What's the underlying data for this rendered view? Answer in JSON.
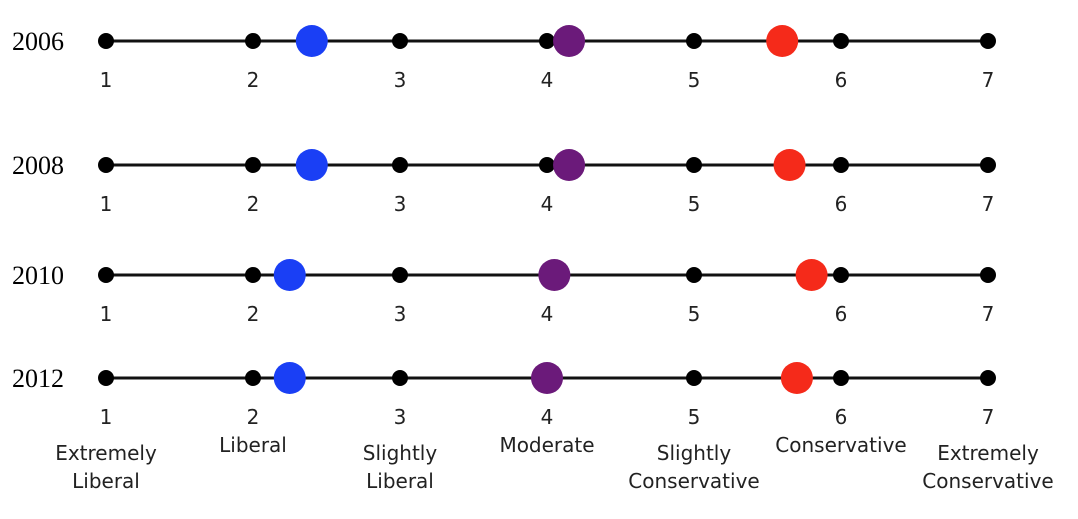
{
  "chart_data": {
    "type": "scatter",
    "title": "",
    "xlabel": "",
    "ylabel": "",
    "xlim": [
      1,
      7
    ],
    "ticks": [
      "1",
      "2",
      "3",
      "4",
      "5",
      "6",
      "7"
    ],
    "scale_labels": [
      [
        "Extremely",
        "Liberal"
      ],
      [
        "Liberal"
      ],
      [
        "Slightly",
        "Liberal"
      ],
      [
        "Moderate"
      ],
      [
        "Slightly",
        "Conservative"
      ],
      [
        "Conservative"
      ],
      [
        "Extremely",
        "Conservative"
      ]
    ],
    "series_colors": [
      "#1a3ff5",
      "#6b1a7a",
      "#f52a1a"
    ],
    "rows": [
      {
        "year": "2006",
        "values": [
          2.4,
          4.15,
          5.6
        ]
      },
      {
        "year": "2008",
        "values": [
          2.4,
          4.15,
          5.65
        ]
      },
      {
        "year": "2010",
        "values": [
          2.25,
          4.05,
          5.8
        ]
      },
      {
        "year": "2012",
        "values": [
          2.25,
          4.0,
          5.7
        ]
      }
    ]
  }
}
